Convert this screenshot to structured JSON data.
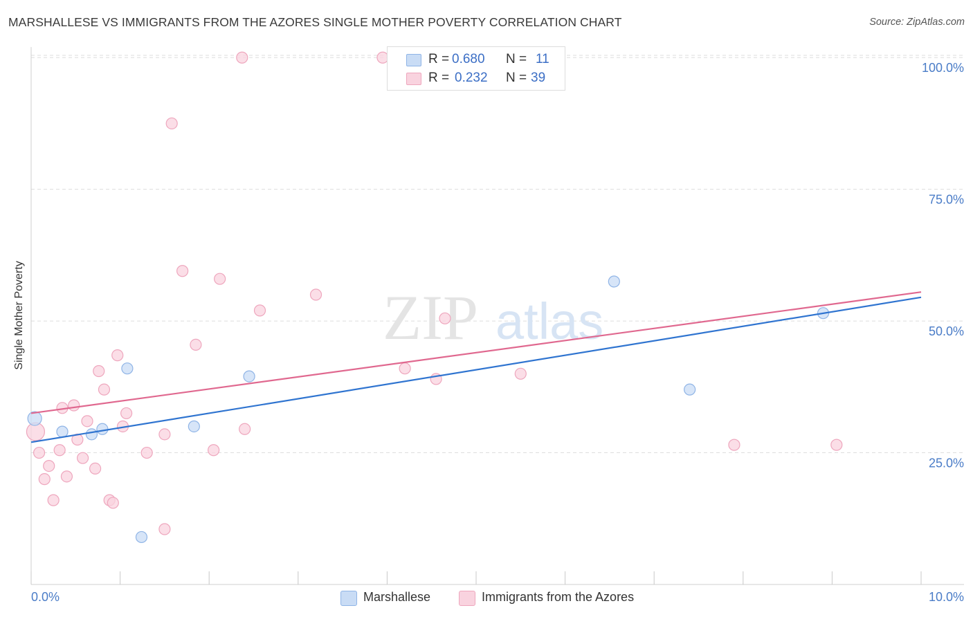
{
  "title": "MARSHALLESE VS IMMIGRANTS FROM THE AZORES SINGLE MOTHER POVERTY CORRELATION CHART",
  "source": "Source: ZipAtlas.com",
  "watermark": {
    "part1": "ZIP",
    "part2": "atlas"
  },
  "stats": [
    {
      "r_label": "R =",
      "r_value": "0.680",
      "n_label": "N =",
      "n_value": "11",
      "color": "#a8c8f0"
    },
    {
      "r_label": "R =",
      "r_value": "0.232",
      "n_label": "N =",
      "n_value": "39",
      "color": "#f7bfd0"
    }
  ],
  "legend": [
    {
      "label": "Marshallese",
      "color": "#a8c8f0"
    },
    {
      "label": "Immigrants from the Azores",
      "color": "#f7bfd0"
    }
  ],
  "colors": {
    "blue_fill": "#c9dcf5",
    "blue_stroke": "#8fb4e6",
    "blue_line": "#2f74d0",
    "pink_fill": "#f9d3df",
    "pink_stroke": "#eea6bd",
    "pink_line": "#e0688f",
    "tick_text": "#4a7cc7",
    "grid": "#dddddd"
  },
  "chart_data": {
    "type": "scatter",
    "title": "MARSHALLESE VS IMMIGRANTS FROM THE AZORES SINGLE MOTHER POVERTY CORRELATION CHART",
    "xlabel": "",
    "ylabel": "Single Mother Poverty",
    "xlim": [
      0,
      10
    ],
    "ylim": [
      0,
      102
    ],
    "x_tick_labels": [
      "0.0%",
      "10.0%"
    ],
    "y_ticks": [
      25,
      50,
      75,
      100
    ],
    "y_tick_labels": [
      "25.0%",
      "50.0%",
      "75.0%",
      "100.0%"
    ],
    "grid": true,
    "legend_position": "bottom",
    "series": [
      {
        "name": "Marshallese",
        "r": 0.68,
        "n": 11,
        "points": [
          {
            "x": 0.04,
            "y": 31.5
          },
          {
            "x": 0.35,
            "y": 29.0
          },
          {
            "x": 0.68,
            "y": 28.5
          },
          {
            "x": 0.8,
            "y": 29.5
          },
          {
            "x": 1.08,
            "y": 41.0
          },
          {
            "x": 1.24,
            "y": 9.0
          },
          {
            "x": 1.83,
            "y": 30.0
          },
          {
            "x": 2.45,
            "y": 39.5
          },
          {
            "x": 6.55,
            "y": 57.5
          },
          {
            "x": 7.4,
            "y": 37.0
          },
          {
            "x": 8.9,
            "y": 51.5
          }
        ],
        "trend": {
          "x": [
            0,
            10
          ],
          "y": [
            27.0,
            54.5
          ]
        }
      },
      {
        "name": "Immigrants from the Azores",
        "r": 0.232,
        "n": 39,
        "points": [
          {
            "x": 0.05,
            "y": 29.0
          },
          {
            "x": 0.09,
            "y": 25.0
          },
          {
            "x": 0.15,
            "y": 20.0
          },
          {
            "x": 0.2,
            "y": 22.5
          },
          {
            "x": 0.25,
            "y": 16.0
          },
          {
            "x": 0.32,
            "y": 25.5
          },
          {
            "x": 0.35,
            "y": 33.5
          },
          {
            "x": 0.4,
            "y": 20.5
          },
          {
            "x": 0.48,
            "y": 34.0
          },
          {
            "x": 0.52,
            "y": 27.5
          },
          {
            "x": 0.58,
            "y": 24.0
          },
          {
            "x": 0.63,
            "y": 31.0
          },
          {
            "x": 0.72,
            "y": 22.0
          },
          {
            "x": 0.76,
            "y": 40.5
          },
          {
            "x": 0.82,
            "y": 37.0
          },
          {
            "x": 0.88,
            "y": 16.0
          },
          {
            "x": 0.92,
            "y": 15.5
          },
          {
            "x": 0.97,
            "y": 43.5
          },
          {
            "x": 1.03,
            "y": 30.0
          },
          {
            "x": 1.07,
            "y": 32.5
          },
          {
            "x": 1.3,
            "y": 25.0
          },
          {
            "x": 1.5,
            "y": 28.5
          },
          {
            "x": 1.5,
            "y": 10.5
          },
          {
            "x": 1.58,
            "y": 87.5
          },
          {
            "x": 1.7,
            "y": 59.5
          },
          {
            "x": 1.85,
            "y": 45.5
          },
          {
            "x": 2.05,
            "y": 25.5
          },
          {
            "x": 2.12,
            "y": 58.0
          },
          {
            "x": 2.37,
            "y": 100.0
          },
          {
            "x": 2.4,
            "y": 29.5
          },
          {
            "x": 2.57,
            "y": 52.0
          },
          {
            "x": 3.2,
            "y": 55.0
          },
          {
            "x": 3.95,
            "y": 100.0
          },
          {
            "x": 4.2,
            "y": 41.0
          },
          {
            "x": 4.55,
            "y": 39.0
          },
          {
            "x": 4.65,
            "y": 50.5
          },
          {
            "x": 5.5,
            "y": 40.0
          },
          {
            "x": 7.9,
            "y": 26.5
          },
          {
            "x": 9.05,
            "y": 26.5
          }
        ],
        "trend": {
          "x": [
            0,
            10
          ],
          "y": [
            32.5,
            55.5
          ]
        }
      }
    ]
  }
}
